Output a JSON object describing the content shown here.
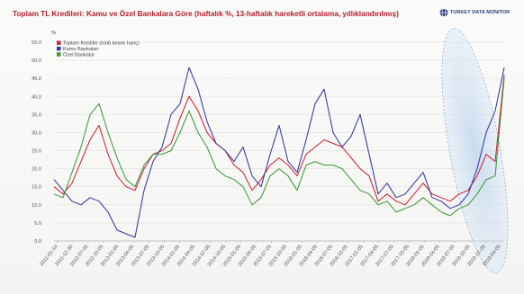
{
  "header": {
    "title": "Toplam TL Kredileri: Kamu ve Özel Bankalara Göre (haftalık %, 13-haftalık hareketli ortalama, yıllıklandırılmış)",
    "logo_text": "TURKEY DATA MONITOR"
  },
  "chart_data": {
    "type": "line",
    "title": "Toplam TL Kredileri: Kamu ve Özel Bankalara Göre (haftalık %, 13-haftalık hareketli ortalama, yıllıklandırılmış)",
    "xlabel": "",
    "ylabel": "%",
    "ylim": [
      0,
      55
    ],
    "y_ticks": [
      0,
      5,
      10,
      15,
      20,
      25,
      30,
      35,
      40,
      45,
      50,
      55
    ],
    "y_tick_labels": [
      "0.0",
      "5.0",
      "10.0",
      "15.0",
      "20.0",
      "25.0",
      "30.0",
      "35.0",
      "40.0",
      "45.0",
      "50.0",
      "55.0"
    ],
    "x_tick_labels": [
      "2011-01-14",
      "2011-12-30",
      "2012-07-05",
      "2012-10-05",
      "2013-01-05",
      "2013-04-05",
      "2013-07-05",
      "2013-10-05",
      "2014-01-05",
      "2014-04-05",
      "2014-07-05",
      "2014-10-05",
      "2015-01-05",
      "2015-04-05",
      "2015-07-05",
      "2015-10-05",
      "2016-01-05",
      "2016-04-05",
      "2016-07-05",
      "2016-10-05",
      "2017-01-05",
      "2017-04-05",
      "2017-07-05",
      "2017-10-05",
      "2018-01-05",
      "2018-04-05",
      "2018-07-05",
      "2018-10-05",
      "2018-12-28",
      "2019-04-05"
    ],
    "x_range": [
      0,
      100
    ],
    "grid": true,
    "legend_position": "top-left",
    "highlight": "ellipse around the last weeks of the series (2019 spike)",
    "series": [
      {
        "name": "Toplam Krediler (mob kesim hariç)",
        "color": "#cc2233",
        "x": [
          0,
          2,
          4,
          6,
          8,
          10,
          12,
          14,
          16,
          18,
          20,
          22,
          24,
          26,
          28,
          30,
          32,
          34,
          36,
          38,
          40,
          42,
          44,
          46,
          48,
          50,
          52,
          54,
          56,
          58,
          60,
          62,
          64,
          66,
          68,
          70,
          72,
          74,
          76,
          78,
          80,
          82,
          84,
          86,
          88,
          90,
          92,
          94,
          96,
          98,
          100
        ],
        "values": [
          15,
          13,
          16,
          22,
          28,
          32,
          24,
          18,
          15,
          14,
          20,
          24,
          25,
          27,
          34,
          40,
          36,
          30,
          27,
          25,
          21,
          19,
          14,
          17,
          21,
          23,
          21,
          18,
          24,
          26,
          28,
          27,
          26,
          23,
          20,
          18,
          11,
          13,
          11,
          10,
          13,
          16,
          13,
          12,
          11,
          13,
          14,
          18,
          24,
          22,
          46
        ]
      },
      {
        "name": "Kamu Bankaları",
        "color": "#333a99",
        "x": [
          0,
          2,
          4,
          6,
          8,
          10,
          12,
          14,
          16,
          18,
          20,
          22,
          24,
          26,
          28,
          30,
          32,
          34,
          36,
          38,
          40,
          42,
          44,
          46,
          48,
          50,
          52,
          54,
          56,
          58,
          60,
          62,
          64,
          66,
          68,
          70,
          72,
          74,
          76,
          78,
          80,
          82,
          84,
          86,
          88,
          90,
          92,
          94,
          96,
          98,
          100
        ],
        "values": [
          17,
          14,
          11,
          10,
          12,
          11,
          8,
          3,
          2,
          1,
          14,
          22,
          26,
          35,
          38,
          48,
          42,
          33,
          27,
          25,
          22,
          26,
          18,
          15,
          24,
          32,
          22,
          19,
          28,
          38,
          42,
          30,
          26,
          29,
          35,
          24,
          13,
          16,
          12,
          13,
          16,
          19,
          12,
          11,
          9,
          10,
          13,
          20,
          30,
          36,
          48
        ]
      },
      {
        "name": "Özel Bankalar",
        "color": "#3c9a3a",
        "x": [
          0,
          2,
          4,
          6,
          8,
          10,
          12,
          14,
          16,
          18,
          20,
          22,
          24,
          26,
          28,
          30,
          32,
          34,
          36,
          38,
          40,
          42,
          44,
          46,
          48,
          50,
          52,
          54,
          56,
          58,
          60,
          62,
          64,
          66,
          68,
          70,
          72,
          74,
          76,
          78,
          80,
          82,
          84,
          86,
          88,
          90,
          92,
          94,
          96,
          98,
          100
        ],
        "values": [
          13,
          12,
          19,
          26,
          35,
          38,
          30,
          23,
          17,
          15,
          21,
          24,
          24,
          25,
          30,
          36,
          30,
          26,
          20,
          18,
          17,
          15,
          10,
          12,
          18,
          20,
          18,
          14,
          21,
          22,
          21,
          21,
          20,
          17,
          14,
          13,
          10,
          11,
          8,
          9,
          10,
          12,
          10,
          8,
          7,
          9,
          10,
          13,
          17,
          18,
          45
        ]
      }
    ]
  }
}
